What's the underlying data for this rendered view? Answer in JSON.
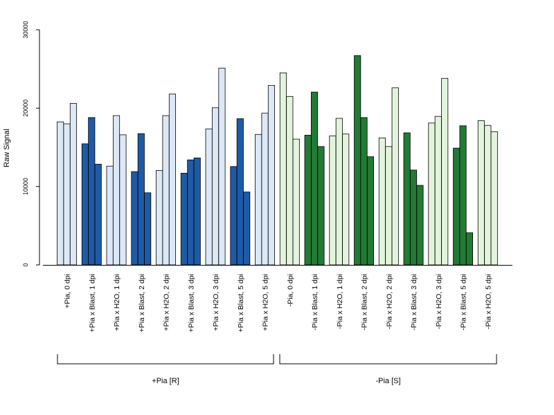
{
  "chart_data": {
    "type": "bar",
    "xlabel": "",
    "ylabel": "Raw Signal",
    "ylim": [
      0,
      30000
    ],
    "yticks": [
      0,
      10000,
      20000,
      30000
    ],
    "grid": false,
    "categories": [
      "+Pia, 0 dpi",
      "+Pia x Blast, 1 dpi",
      "+Pia x H2O, 1 dpi",
      "+Pia x Blast, 2 dpi",
      "+Pia x H2O, 2 dpi",
      "+Pia x Blast, 3 dpi",
      "+Pia x H2O, 3 dpi",
      "+Pia x Blast, 5 dpi",
      "+Pia x H2O, 5 dpi",
      "-Pia, 0 dpi",
      "-Pia x Blast, 1 dpi",
      "-Pia x H2O, 1 dpi",
      "-Pia x Blast, 2 dpi",
      "-Pia x H2O, 2 dpi",
      "-Pia x Blast, 3 dpi",
      "-Pia x H2O, 3 dpi",
      "-Pia x Blast, 5 dpi",
      "-Pia x H2O, 5 dpi"
    ],
    "values": [
      [
        18250,
        18000,
        20600
      ],
      [
        15450,
        18800,
        12850
      ],
      [
        12600,
        19050,
        16600
      ],
      [
        11900,
        16750,
        9200
      ],
      [
        12050,
        19050,
        21800
      ],
      [
        11700,
        13400,
        13650
      ],
      [
        17350,
        20050,
        25100
      ],
      [
        12550,
        18650,
        9300
      ],
      [
        16650,
        19350,
        22900
      ],
      [
        24500,
        21500,
        16050
      ],
      [
        16550,
        22050,
        15100
      ],
      [
        16450,
        18700,
        16700
      ],
      [
        26700,
        18800,
        13800
      ],
      [
        16200,
        15100,
        22600
      ],
      [
        16850,
        12100,
        10150
      ],
      [
        18100,
        18950,
        23800
      ],
      [
        14900,
        17750,
        4100
      ],
      [
        18400,
        17800,
        17000
      ]
    ],
    "bar_colors": [
      "#dce8f6",
      "#1f5aa6",
      "#dce8f6",
      "#1f5aa6",
      "#dce8f6",
      "#1f5aa6",
      "#dce8f6",
      "#1f5aa6",
      "#dce8f6",
      "#e2f4dc",
      "#237a34",
      "#e2f4dc",
      "#237a34",
      "#e2f4dc",
      "#237a34",
      "#e2f4dc",
      "#237a34",
      "#e2f4dc"
    ],
    "groups": [
      {
        "label": "+Pia [R]",
        "categories": [
          "+Pia, 0 dpi",
          "+Pia x Blast, 1 dpi",
          "+Pia x H2O, 1 dpi",
          "+Pia x Blast, 2 dpi",
          "+Pia x H2O, 2 dpi",
          "+Pia x Blast, 3 dpi",
          "+Pia x H2O, 3 dpi",
          "+Pia x Blast, 5 dpi",
          "+Pia x H2O, 5 dpi"
        ]
      },
      {
        "label": "-Pia [S]",
        "categories": [
          "-Pia, 0 dpi",
          "-Pia x Blast, 1 dpi",
          "-Pia x H2O, 1 dpi",
          "-Pia x Blast, 2 dpi",
          "-Pia x H2O, 2 dpi",
          "-Pia x Blast, 3 dpi",
          "-Pia x H2O, 3 dpi",
          "-Pia x Blast, 5 dpi",
          "-Pia x H2O, 5 dpi"
        ]
      }
    ]
  }
}
